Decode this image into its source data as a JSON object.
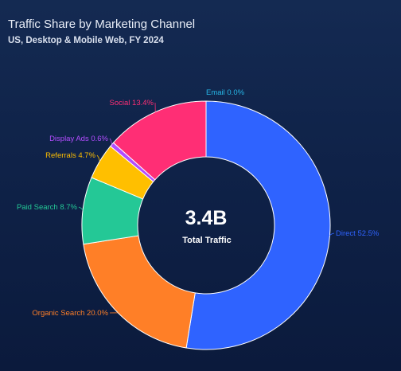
{
  "header": {
    "title": "Traffic Share by Marketing Channel",
    "subtitle": "US, Desktop & Mobile Web, FY 2024"
  },
  "center": {
    "value": "3.4B",
    "label": "Total Traffic"
  },
  "chart_data": {
    "type": "pie",
    "variant": "donut",
    "title": "Traffic Share by Marketing Channel",
    "subtitle": "US, Desktop & Mobile Web, FY 2024",
    "unit": "%",
    "center_value": "3.4B",
    "center_label": "Total Traffic",
    "slices": [
      {
        "name": "Direct",
        "value": 52.5,
        "label": "Direct 52.5%",
        "color": "#2f63ff"
      },
      {
        "name": "Organic Search",
        "value": 20.0,
        "label": "Organic Search 20.0%",
        "color": "#ff7f27"
      },
      {
        "name": "Paid Search",
        "value": 8.7,
        "label": "Paid Search 8.7%",
        "color": "#24c896"
      },
      {
        "name": "Referrals",
        "value": 4.7,
        "label": "Referrals 4.7%",
        "color": "#ffbf00"
      },
      {
        "name": "Display Ads",
        "value": 0.6,
        "label": "Display Ads 0.6%",
        "color": "#b34dff"
      },
      {
        "name": "Social",
        "value": 13.4,
        "label": "Social 13.4%",
        "color": "#ff2e75"
      },
      {
        "name": "Email",
        "value": 0.0,
        "label": "Email 0.0%",
        "color": "#27b8e8"
      }
    ]
  }
}
